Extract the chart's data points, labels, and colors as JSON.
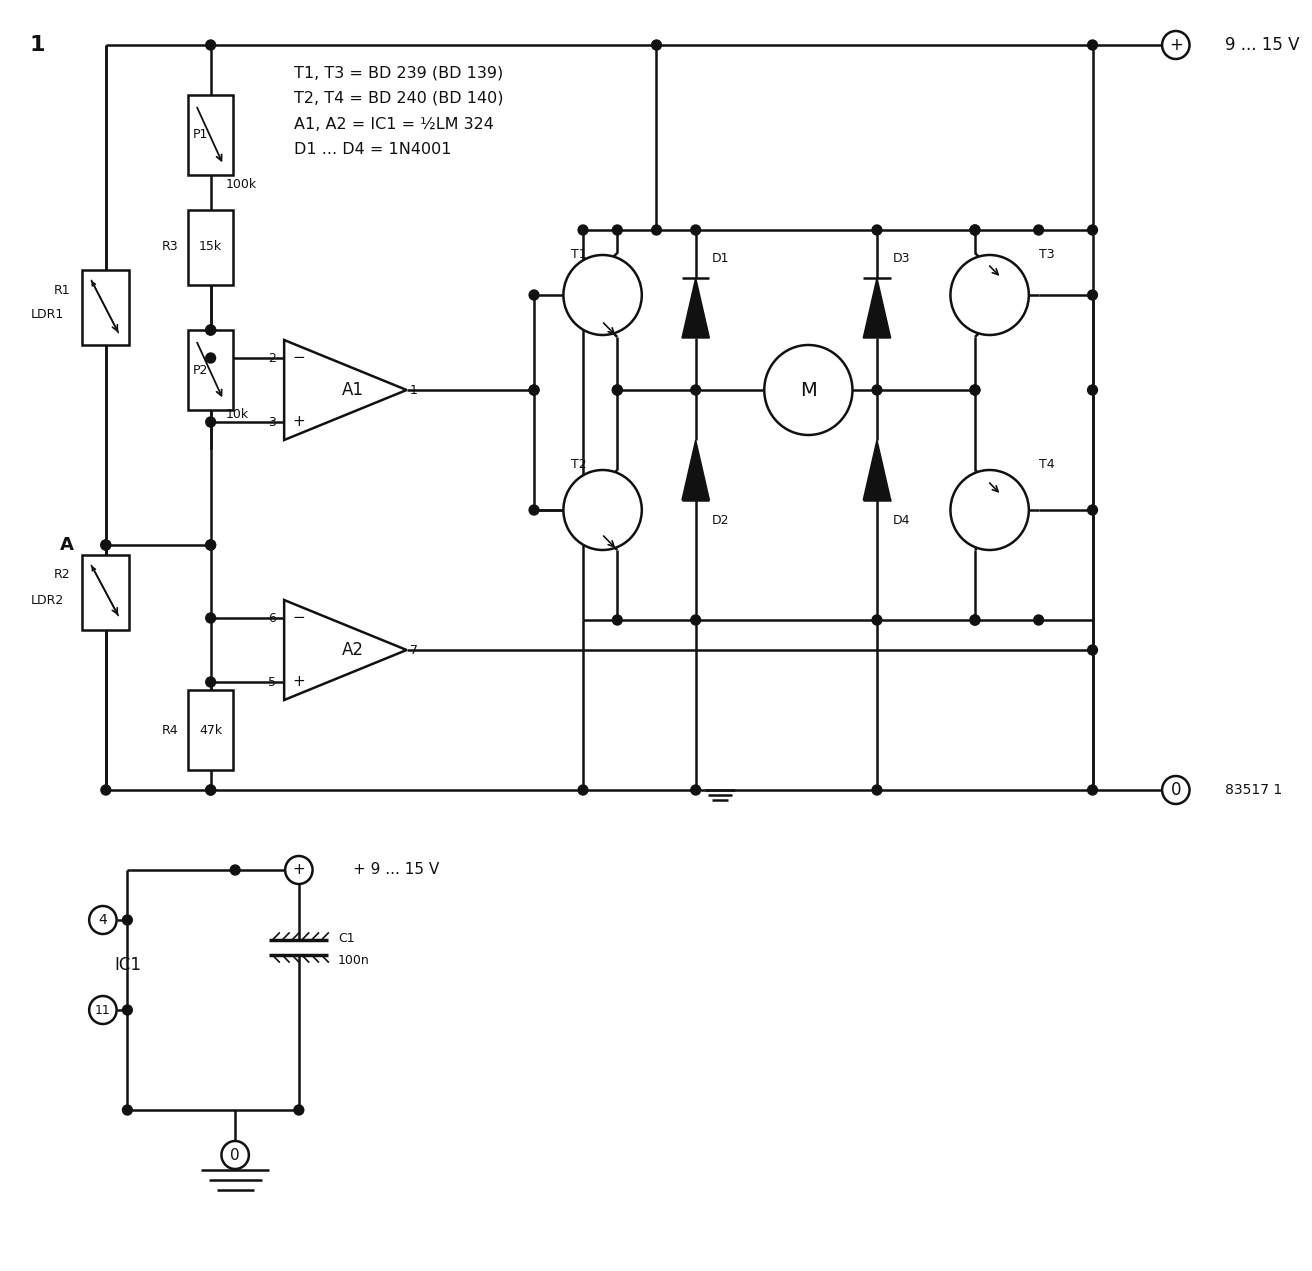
{
  "bg_color": "#ffffff",
  "line_color": "#111111",
  "text_color": "#111111",
  "component_notes": "T1, T3 = BD 239 (BD 139)\nT2, T4 = BD 240 (BD 140)\nA1, A2 = IC1 = ½LM 324\nD1 ... D4 = 1N4001",
  "voltage_label": "9 ... 15 V",
  "voltage_label2": "+ 9 ... 15 V",
  "circuit_id": "83517 1"
}
